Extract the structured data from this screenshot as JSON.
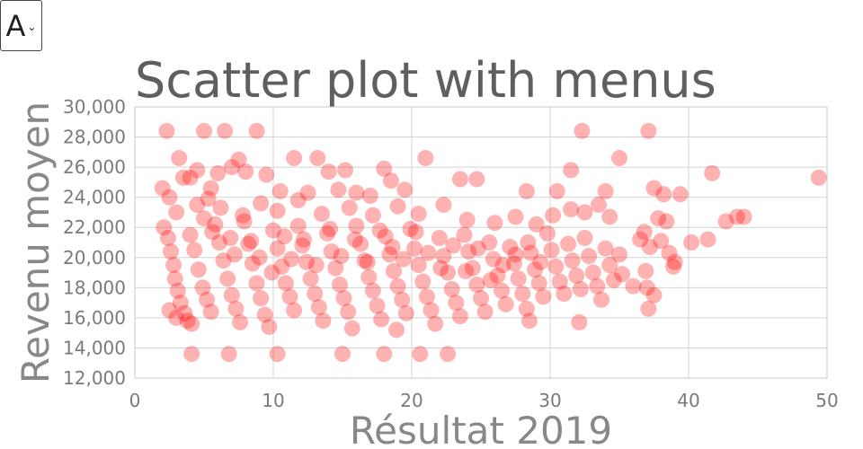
{
  "menu": {
    "selected": "A"
  },
  "chart_data": {
    "type": "scatter",
    "title": "Scatter plot with menus",
    "xlabel": "Résultat 2019",
    "ylabel": "Revenu moyen",
    "xlim": [
      0,
      50
    ],
    "ylim": [
      12000,
      30000
    ],
    "xticks": [
      0,
      10,
      20,
      30,
      40,
      50
    ],
    "yticks": [
      12000,
      14000,
      16000,
      18000,
      20000,
      22000,
      24000,
      26000,
      28000,
      30000
    ],
    "xtick_labels": [
      "0",
      "10",
      "20",
      "30",
      "40",
      "50"
    ],
    "ytick_labels": [
      "12,000",
      "14,000",
      "16,000",
      "18,000",
      "20,000",
      "22,000",
      "24,000",
      "26,000",
      "28,000",
      "30,000"
    ],
    "grid": true,
    "marker_color": "#ff0000",
    "marker_opacity": 0.3,
    "points": [
      [
        2.3,
        28400
      ],
      [
        5.0,
        28400
      ],
      [
        6.5,
        28400
      ],
      [
        8.8,
        28400
      ],
      [
        32.3,
        28400
      ],
      [
        37.1,
        28400
      ],
      [
        2.0,
        24600
      ],
      [
        2.5,
        24000
      ],
      [
        3.2,
        26600
      ],
      [
        3.5,
        25300
      ],
      [
        4.0,
        25300
      ],
      [
        4.5,
        25800
      ],
      [
        5.5,
        24600
      ],
      [
        6.0,
        25600
      ],
      [
        7.0,
        26000
      ],
      [
        7.5,
        26500
      ],
      [
        8.0,
        25700
      ],
      [
        9.5,
        25500
      ],
      [
        10.5,
        24400
      ],
      [
        11.5,
        26600
      ],
      [
        12.5,
        24300
      ],
      [
        13.2,
        26600
      ],
      [
        14.0,
        25700
      ],
      [
        14.7,
        24500
      ],
      [
        15.2,
        25800
      ],
      [
        16.0,
        24300
      ],
      [
        17.0,
        24100
      ],
      [
        18.0,
        25900
      ],
      [
        18.5,
        25100
      ],
      [
        19.5,
        24500
      ],
      [
        21.0,
        26600
      ],
      [
        23.5,
        25200
      ],
      [
        24.7,
        25200
      ],
      [
        28.3,
        24400
      ],
      [
        30.5,
        24400
      ],
      [
        31.5,
        25800
      ],
      [
        34.0,
        24400
      ],
      [
        35.0,
        26600
      ],
      [
        37.5,
        24600
      ],
      [
        38.2,
        24200
      ],
      [
        39.4,
        24200
      ],
      [
        41.7,
        25600
      ],
      [
        49.4,
        25300
      ],
      [
        3.0,
        23000
      ],
      [
        4.5,
        23500
      ],
      [
        6.2,
        23300
      ],
      [
        7.8,
        22800
      ],
      [
        9.1,
        23600
      ],
      [
        10.3,
        23100
      ],
      [
        11.8,
        23800
      ],
      [
        13.5,
        22900
      ],
      [
        15.5,
        23300
      ],
      [
        17.2,
        22800
      ],
      [
        19.0,
        23400
      ],
      [
        20.5,
        22900
      ],
      [
        22.3,
        23500
      ],
      [
        24.0,
        22500
      ],
      [
        26.0,
        22300
      ],
      [
        27.5,
        22700
      ],
      [
        29.0,
        22200
      ],
      [
        30.2,
        22800
      ],
      [
        31.5,
        23200
      ],
      [
        32.5,
        23000
      ],
      [
        33.5,
        23500
      ],
      [
        34.3,
        22700
      ],
      [
        36.8,
        21700
      ],
      [
        37.8,
        22600
      ],
      [
        38.4,
        22400
      ],
      [
        40.2,
        21000
      ],
      [
        41.4,
        21200
      ],
      [
        42.7,
        22400
      ],
      [
        43.5,
        22700
      ],
      [
        44.0,
        22700
      ],
      [
        2.1,
        22000
      ],
      [
        2.4,
        21300
      ],
      [
        2.6,
        20400
      ],
      [
        2.8,
        19500
      ],
      [
        2.9,
        18600
      ],
      [
        3.1,
        17800
      ],
      [
        3.3,
        17000
      ],
      [
        3.6,
        16300
      ],
      [
        3.8,
        15800
      ],
      [
        4.1,
        15600
      ],
      [
        2.5,
        16500
      ],
      [
        3.0,
        16000
      ],
      [
        4.1,
        13600
      ],
      [
        6.8,
        13600
      ],
      [
        10.3,
        13600
      ],
      [
        15.0,
        13600
      ],
      [
        18.0,
        13600
      ],
      [
        20.6,
        13600
      ],
      [
        22.6,
        13600
      ],
      [
        4.0,
        21500
      ],
      [
        4.3,
        20500
      ],
      [
        4.6,
        19200
      ],
      [
        4.9,
        18000
      ],
      [
        5.2,
        17200
      ],
      [
        5.5,
        16400
      ],
      [
        5.8,
        22200
      ],
      [
        6.1,
        21000
      ],
      [
        6.4,
        19800
      ],
      [
        6.7,
        18600
      ],
      [
        7.0,
        17500
      ],
      [
        7.3,
        16600
      ],
      [
        7.6,
        15700
      ],
      [
        7.9,
        22400
      ],
      [
        8.2,
        20900
      ],
      [
        8.5,
        19600
      ],
      [
        8.8,
        18300
      ],
      [
        9.1,
        17300
      ],
      [
        9.4,
        16200
      ],
      [
        9.7,
        15400
      ],
      [
        10.0,
        21800
      ],
      [
        10.3,
        20600
      ],
      [
        10.6,
        19400
      ],
      [
        10.9,
        18300
      ],
      [
        11.2,
        17400
      ],
      [
        11.5,
        16500
      ],
      [
        11.8,
        22100
      ],
      [
        12.1,
        20800
      ],
      [
        12.4,
        19700
      ],
      [
        12.7,
        18600
      ],
      [
        13.0,
        17600
      ],
      [
        13.3,
        16700
      ],
      [
        13.6,
        15800
      ],
      [
        13.9,
        21600
      ],
      [
        14.2,
        20400
      ],
      [
        14.5,
        19300
      ],
      [
        14.8,
        18200
      ],
      [
        15.1,
        17300
      ],
      [
        15.4,
        16400
      ],
      [
        15.7,
        15300
      ],
      [
        16.0,
        22100
      ],
      [
        16.3,
        20900
      ],
      [
        16.6,
        19800
      ],
      [
        16.9,
        18700
      ],
      [
        17.2,
        17800
      ],
      [
        17.5,
        16800
      ],
      [
        17.8,
        15900
      ],
      [
        18.1,
        21400
      ],
      [
        18.4,
        20200
      ],
      [
        18.7,
        19100
      ],
      [
        18.9,
        15200
      ],
      [
        19.0,
        18100
      ],
      [
        19.3,
        17200
      ],
      [
        19.6,
        16300
      ],
      [
        19.9,
        21900
      ],
      [
        20.2,
        20600
      ],
      [
        20.5,
        19500
      ],
      [
        20.8,
        18400
      ],
      [
        21.1,
        17400
      ],
      [
        21.4,
        16500
      ],
      [
        21.7,
        15600
      ],
      [
        22.0,
        21300
      ],
      [
        22.3,
        20100
      ],
      [
        22.6,
        19000
      ],
      [
        22.9,
        17900
      ],
      [
        23.2,
        17000
      ],
      [
        23.5,
        16100
      ],
      [
        23.8,
        21500
      ],
      [
        24.1,
        20400
      ],
      [
        24.4,
        19300
      ],
      [
        24.7,
        18200
      ],
      [
        25.0,
        17300
      ],
      [
        25.3,
        16400
      ],
      [
        25.6,
        21000
      ],
      [
        25.9,
        19900
      ],
      [
        26.2,
        18800
      ],
      [
        26.5,
        17800
      ],
      [
        26.8,
        16900
      ],
      [
        27.1,
        20700
      ],
      [
        27.4,
        19600
      ],
      [
        27.7,
        18600
      ],
      [
        28.0,
        17600
      ],
      [
        28.3,
        16600
      ],
      [
        28.5,
        15800
      ],
      [
        28.6,
        20300
      ],
      [
        28.9,
        19200
      ],
      [
        29.2,
        18300
      ],
      [
        29.5,
        17400
      ],
      [
        29.8,
        21600
      ],
      [
        30.1,
        20500
      ],
      [
        30.4,
        19400
      ],
      [
        30.7,
        18400
      ],
      [
        31.0,
        17600
      ],
      [
        31.3,
        20900
      ],
      [
        31.6,
        19800
      ],
      [
        31.9,
        18800
      ],
      [
        32.1,
        15700
      ],
      [
        32.2,
        17900
      ],
      [
        32.5,
        21300
      ],
      [
        32.8,
        20100
      ],
      [
        33.1,
        19000
      ],
      [
        33.4,
        18100
      ],
      [
        33.7,
        17200
      ],
      [
        34.0,
        20600
      ],
      [
        34.3,
        19500
      ],
      [
        34.6,
        18500
      ],
      [
        35.0,
        20200
      ],
      [
        35.2,
        18900
      ],
      [
        36.0,
        18100
      ],
      [
        36.5,
        21200
      ],
      [
        36.9,
        19100
      ],
      [
        37.0,
        18000
      ],
      [
        37.1,
        16600
      ],
      [
        37.2,
        20700
      ],
      [
        37.5,
        17500
      ],
      [
        38.0,
        21100
      ],
      [
        38.6,
        20300
      ],
      [
        39.0,
        19700
      ],
      [
        38.9,
        19400
      ],
      [
        5.3,
        23900
      ],
      [
        5.0,
        22600
      ],
      [
        5.6,
        21700
      ],
      [
        6.9,
        21300
      ],
      [
        7.2,
        20200
      ],
      [
        8.4,
        21100
      ],
      [
        9.0,
        20000
      ],
      [
        9.9,
        19000
      ],
      [
        10.8,
        21400
      ],
      [
        11.3,
        19900
      ],
      [
        12.2,
        21200
      ],
      [
        13.1,
        19500
      ],
      [
        14.1,
        21900
      ],
      [
        14.9,
        20100
      ],
      [
        15.9,
        21200
      ],
      [
        16.8,
        19700
      ],
      [
        17.7,
        21800
      ],
      [
        18.6,
        20700
      ],
      [
        19.4,
        19900
      ],
      [
        20.3,
        21700
      ],
      [
        21.2,
        20300
      ],
      [
        22.1,
        19300
      ],
      [
        23.0,
        20800
      ],
      [
        23.9,
        19100
      ],
      [
        24.8,
        20600
      ],
      [
        25.7,
        18500
      ],
      [
        26.6,
        19500
      ],
      [
        27.5,
        20200
      ],
      [
        28.4,
        21000
      ],
      [
        29.3,
        19700
      ]
    ]
  }
}
